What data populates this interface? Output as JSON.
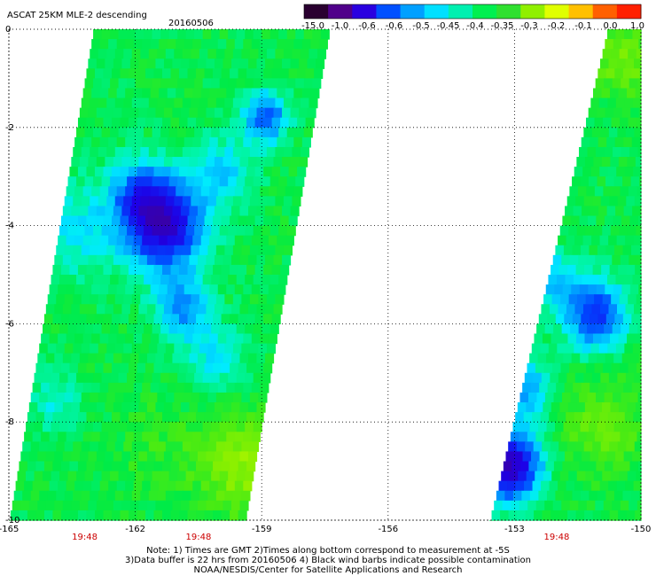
{
  "chart_data": {
    "type": "heatmap",
    "title": "ASCAT 25KM MLE-2 descending",
    "date": "20160506",
    "colorbar": {
      "ticks": [
        "-15.0",
        "-1.0",
        "-0.6",
        "-0.6",
        "-0.5",
        "-0.45",
        "-0.4",
        "-0.35",
        "-0.3",
        "-0.2",
        "-0.1",
        "0.0",
        "1.0"
      ],
      "colors": [
        "#2a0030",
        "#50008a",
        "#2a00e0",
        "#0050ff",
        "#00a0ff",
        "#00e0ff",
        "#00f0b0",
        "#00f050",
        "#30e030",
        "#90f000",
        "#e0ff00",
        "#ffc000",
        "#ff6000",
        "#ff2000"
      ]
    },
    "x_ticks": [
      -165,
      -162,
      -159,
      -156,
      -153,
      -150
    ],
    "x_tick_labels": [
      "-165",
      "-162",
      "-159",
      "-156",
      "-153",
      "-150"
    ],
    "xlim": [
      -165,
      -150
    ],
    "y_ticks": [
      0,
      -2,
      -4,
      -6,
      -8,
      -10
    ],
    "y_tick_labels": [
      "0",
      "-2",
      "-4",
      "-6",
      "-8",
      "-10"
    ],
    "ylim": [
      -10,
      0
    ],
    "grid": true,
    "time_labels": [
      {
        "lon": -163.2,
        "text": "19:48"
      },
      {
        "lon": -160.5,
        "text": "19:48"
      },
      {
        "lon": -152.0,
        "text": "19:48"
      }
    ],
    "swaths": [
      {
        "lon_left_top": -163.0,
        "lon_right_top": -157.6,
        "lon_left_bottom": -165.0,
        "lon_right_bottom": -159.6,
        "base_value": -0.33,
        "features": [
          {
            "lon": -161.4,
            "lat": -3.9,
            "radius": 0.9,
            "value": -0.68
          },
          {
            "lon": -162.0,
            "lat": -3.3,
            "radius": 0.7,
            "value": -0.5
          },
          {
            "lon": -163.5,
            "lat": -4.0,
            "radius": 1.0,
            "value": -0.42
          },
          {
            "lon": -161.0,
            "lat": -5.6,
            "radius": 0.6,
            "value": -0.5
          },
          {
            "lon": -159.0,
            "lat": -1.7,
            "radius": 0.5,
            "value": -0.55
          },
          {
            "lon": -160.0,
            "lat": -2.8,
            "radius": 0.7,
            "value": -0.44
          },
          {
            "lon": -164.0,
            "lat": -7.5,
            "radius": 0.6,
            "value": -0.4
          },
          {
            "lon": -160.2,
            "lat": -6.6,
            "radius": 0.7,
            "value": -0.42
          },
          {
            "lon": -161.5,
            "lat": -8.5,
            "radius": 1.2,
            "value": -0.3
          },
          {
            "lon": -159.5,
            "lat": -8.8,
            "radius": 1.0,
            "value": -0.22
          }
        ]
      },
      {
        "lon_left_top": -150.8,
        "lon_right_top": -150.0,
        "lon_left_bottom": -153.6,
        "lon_right_bottom": -150.0,
        "base_value": -0.33,
        "features": [
          {
            "lon": -151.2,
            "lat": -5.7,
            "radius": 0.7,
            "value": -0.58
          },
          {
            "lon": -152.2,
            "lat": -5.0,
            "radius": 0.6,
            "value": -0.45
          },
          {
            "lon": -153.2,
            "lat": -8.8,
            "radius": 0.7,
            "value": -0.7
          },
          {
            "lon": -152.9,
            "lat": -7.2,
            "radius": 0.6,
            "value": -0.5
          },
          {
            "lon": -151.0,
            "lat": -8.0,
            "radius": 1.0,
            "value": -0.26
          },
          {
            "lon": -150.5,
            "lat": -0.5,
            "radius": 0.8,
            "value": -0.24
          }
        ]
      }
    ],
    "notes": [
      "Note: 1) Times are GMT 2)Times along bottom correspond to measurement at -5S",
      "3)Data buffer is 22 hrs from 20160506 4) Black wind barbs indicate possible contamination",
      "NOAA/NESDIS/Center for Satellite Applications and Research"
    ]
  }
}
